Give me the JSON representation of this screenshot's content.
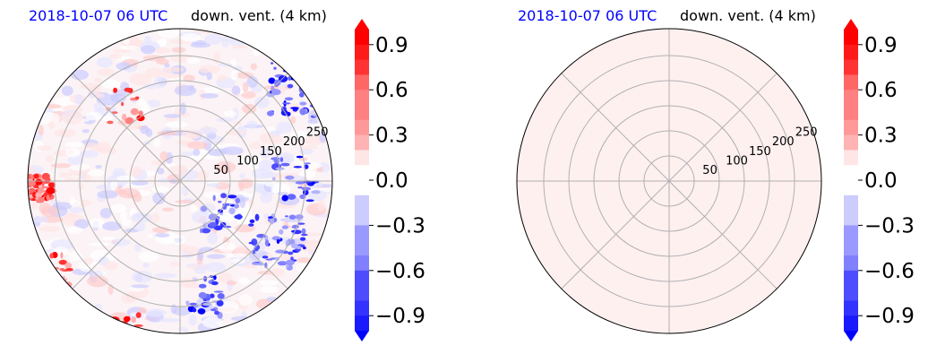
{
  "charts": [
    {
      "date_label": "2018-10-07 06 UTC",
      "var_label": "down. vent. (4 km)",
      "field": "anomaly"
    },
    {
      "date_label": "2018-10-07 06 UTC",
      "var_label": "down. vent. (4 km)",
      "field": "uniform"
    }
  ],
  "colors": {
    "neg_max": "#0000ff",
    "pos_max": "#ff0000",
    "neutral": "#ffffff",
    "uniform_fill": "#fff0f0",
    "grid": "#b0b0b0"
  },
  "chart_data": [
    {
      "type": "heatmap",
      "projection": "polar",
      "title": "2018-10-07 06 UTC down. vent. (4 km)",
      "radial_ticks": [
        "50",
        "100",
        "150",
        "200",
        "250"
      ],
      "colorbar": {
        "ticks": [
          "0.9",
          "0.6",
          "0.3",
          "0.0",
          "−0.3",
          "−0.6",
          "−0.9"
        ],
        "tick_values": [
          0.9,
          0.6,
          0.3,
          0.0,
          -0.3,
          -0.6,
          -0.9
        ],
        "range": [
          -1.0,
          1.0
        ],
        "extend": "both",
        "colormap": "bwr"
      }
    },
    {
      "type": "heatmap",
      "projection": "polar",
      "title": "2018-10-07 06 UTC down. vent. (4 km)",
      "radial_ticks": [
        "50",
        "100",
        "150",
        "200",
        "250"
      ],
      "colorbar": {
        "ticks": [
          "0.9",
          "0.6",
          "0.3",
          "0.0",
          "−0.3",
          "−0.6",
          "−0.9"
        ],
        "tick_values": [
          0.9,
          0.6,
          0.3,
          0.0,
          -0.3,
          -0.6,
          -0.9
        ],
        "range": [
          -1.0,
          1.0
        ],
        "extend": "both",
        "colormap": "bwr"
      },
      "uniform_value": 0.05
    }
  ]
}
